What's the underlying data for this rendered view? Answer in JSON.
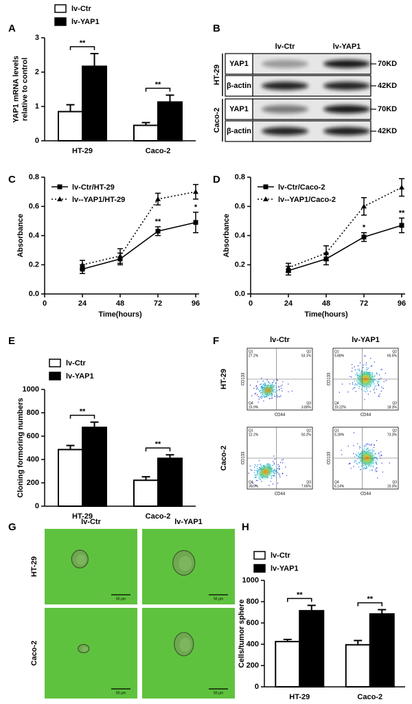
{
  "chart_data": [
    {
      "panel": "A",
      "type": "bar",
      "ylabel": [
        "YAP1 mRNA levels",
        "relative to control"
      ],
      "categories": [
        "HT-29",
        "Caco-2"
      ],
      "series": [
        {
          "name": "lv-Ctr",
          "color": "#ffffff",
          "values": [
            0.85,
            0.45
          ],
          "errors": [
            0.2,
            0.08
          ]
        },
        {
          "name": "lv-YAP1",
          "color": "#000000",
          "values": [
            2.17,
            1.13
          ],
          "errors": [
            0.37,
            0.2
          ]
        }
      ],
      "ylim": [
        0,
        3
      ],
      "yticks": [
        0,
        1,
        2,
        3
      ],
      "significance": [
        "**",
        "**"
      ]
    },
    {
      "panel": "C",
      "type": "line",
      "xlabel": "Time(hours)",
      "ylabel": "Absorbance",
      "x": [
        24,
        48,
        72,
        96
      ],
      "series": [
        {
          "name": "lv-Ctr/HT-29",
          "color": "#000000",
          "line_style": "solid",
          "marker": "square",
          "values": [
            0.17,
            0.24,
            0.43,
            0.49
          ],
          "errors": [
            0.03,
            0.04,
            0.03,
            0.07
          ]
        },
        {
          "name": "lv--YAP1/HT-29",
          "color": "#000000",
          "line_style": "dotted",
          "marker": "triangle",
          "values": [
            0.2,
            0.26,
            0.65,
            0.7
          ],
          "errors": [
            0.03,
            0.05,
            0.04,
            0.05
          ]
        }
      ],
      "xlim": [
        0,
        96
      ],
      "xticks": [
        0,
        24,
        48,
        72,
        96
      ],
      "ylim": [
        0,
        0.8
      ],
      "yticks": [
        {
          "value": 0,
          "label": "0.0"
        },
        0.2,
        0.4,
        0.6,
        0.8
      ],
      "annotations": [
        {
          "text": "**",
          "x": 72
        },
        {
          "text": "*",
          "x": 96
        }
      ]
    },
    {
      "panel": "D",
      "type": "line",
      "xlabel": "Time(hours)",
      "ylabel": "Absorbance",
      "x": [
        24,
        48,
        72,
        96
      ],
      "series": [
        {
          "name": "lv-Ctr/Caco-2",
          "color": "#000000",
          "line_style": "solid",
          "marker": "square",
          "values": [
            0.16,
            0.24,
            0.39,
            0.47
          ],
          "errors": [
            0.03,
            0.04,
            0.03,
            0.05
          ]
        },
        {
          "name": "lv--YAP1/Caco-2",
          "color": "#000000",
          "line_style": "dotted",
          "marker": "triangle",
          "values": [
            0.18,
            0.28,
            0.6,
            0.73
          ],
          "errors": [
            0.03,
            0.05,
            0.06,
            0.06
          ]
        }
      ],
      "xlim": [
        0,
        96
      ],
      "xticks": [
        0,
        24,
        48,
        72,
        96
      ],
      "ylim": [
        0,
        0.8
      ],
      "yticks": [
        {
          "value": 0,
          "label": "0.0"
        },
        0.2,
        0.4,
        0.6,
        0.8
      ],
      "annotations": [
        {
          "text": "*",
          "x": 72
        },
        {
          "text": "**",
          "x": 96
        }
      ]
    },
    {
      "panel": "E",
      "type": "bar",
      "ylabel": [
        "Cloning formoring numbers"
      ],
      "categories": [
        "HT-29",
        "Caco-2"
      ],
      "series": [
        {
          "name": "lv-Ctr",
          "color": "#ffffff",
          "values": [
            485,
            222
          ],
          "errors": [
            35,
            30
          ]
        },
        {
          "name": "lv-YAP1",
          "color": "#000000",
          "values": [
            675,
            410
          ],
          "errors": [
            45,
            30
          ]
        }
      ],
      "ylim": [
        0,
        1000
      ],
      "yticks": [
        0,
        200,
        400,
        600,
        800,
        1000
      ],
      "significance": [
        "**",
        "**"
      ]
    },
    {
      "panel": "H",
      "type": "bar",
      "ylabel": [
        "Cells/tumor sphere"
      ],
      "categories": [
        "HT-29",
        "Caco-2"
      ],
      "series": [
        {
          "name": "lv-Ctr",
          "color": "#ffffff",
          "values": [
            425,
            395
          ],
          "errors": [
            20,
            40
          ]
        },
        {
          "name": "lv-YAP1",
          "color": "#000000",
          "values": [
            715,
            685
          ],
          "errors": [
            50,
            40
          ]
        }
      ],
      "ylim": [
        0,
        1000
      ],
      "yticks": [
        0,
        200,
        400,
        600,
        800,
        1000
      ],
      "significance": [
        "**",
        "**"
      ]
    }
  ],
  "blot": {
    "panel": "B",
    "columns": [
      "lv-Ctr",
      "lv-YAP1"
    ],
    "groups": [
      {
        "name": "HT-29",
        "rows": [
          {
            "label": "YAP1",
            "size": "70KD"
          },
          {
            "label": "β-actin",
            "size": "42KD"
          }
        ]
      },
      {
        "name": "Caco-2",
        "rows": [
          {
            "label": "YAP1",
            "size": "70KD"
          },
          {
            "label": "β-actin",
            "size": "42KD"
          }
        ]
      }
    ]
  },
  "flow": {
    "panel": "F",
    "columns": [
      "lv-Ctr",
      "lv-YAP1"
    ],
    "rows": [
      "HT-29",
      "Caco-2"
    ],
    "xlabel": "CD44",
    "ylabel": "CD133",
    "quadrant_names": [
      "Q1",
      "Q2",
      "Q3",
      "Q4"
    ],
    "plots": [
      {
        "percent": [
          "27.2%",
          "53.1%",
          "3.80%",
          "15.9%"
        ]
      },
      {
        "percent": [
          "5.88%",
          "65.5%",
          "18.3%",
          "10.22%"
        ]
      },
      {
        "percent": [
          "12.2%",
          "50.2%",
          "7.65%",
          "30.0%"
        ]
      },
      {
        "percent": [
          "6.28%",
          "73.3%",
          "15.3%",
          "6.14%"
        ]
      }
    ]
  },
  "spheres": {
    "panel": "G",
    "columns": [
      "lv-Ctr",
      "lv-YAP1"
    ],
    "rows": [
      "HT-29",
      "Caco-2"
    ],
    "scale_bar": "50 μm"
  }
}
